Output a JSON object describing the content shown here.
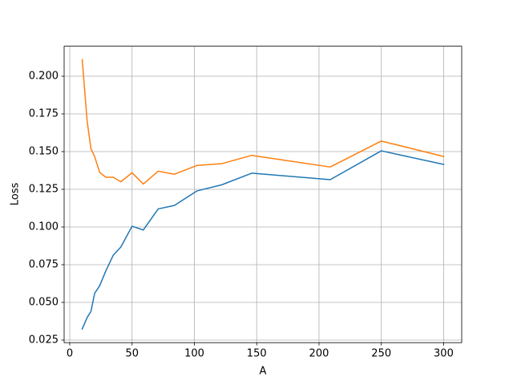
{
  "chart_data": {
    "type": "line",
    "xlabel": "A",
    "ylabel": "Loss",
    "x": [
      10,
      14,
      17,
      20,
      24,
      29,
      35,
      41,
      50,
      59,
      71,
      84,
      102,
      122,
      146,
      209,
      250,
      300
    ],
    "series": [
      {
        "color": "#1f77b4",
        "values": [
          0.0324,
          0.04,
          0.044,
          0.056,
          0.061,
          0.071,
          0.0814,
          0.0867,
          0.1005,
          0.098,
          0.112,
          0.1143,
          0.1239,
          0.128,
          0.1357,
          0.1314,
          0.1505,
          0.1415
        ]
      },
      {
        "color": "#ff7f0e",
        "values": [
          0.211,
          0.17,
          0.152,
          0.1467,
          0.1362,
          0.133,
          0.133,
          0.13,
          0.136,
          0.1285,
          0.137,
          0.135,
          0.1408,
          0.142,
          0.1475,
          0.1398,
          0.157,
          0.1468
        ]
      }
    ],
    "xlim": [
      -4.5,
      314.5
    ],
    "ylim": [
      0.0233,
      0.2199
    ],
    "xticks": [
      0,
      50,
      100,
      150,
      200,
      250,
      300
    ],
    "yticks": [
      0.025,
      {
        "value": 0.05,
        "label": "0.050"
      },
      0.075,
      {
        "value": 0.1,
        "label": "0.100"
      },
      0.125,
      {
        "value": 0.15,
        "label": "0.150"
      },
      0.175,
      {
        "value": 0.2,
        "label": "0.200"
      }
    ],
    "grid": true
  }
}
